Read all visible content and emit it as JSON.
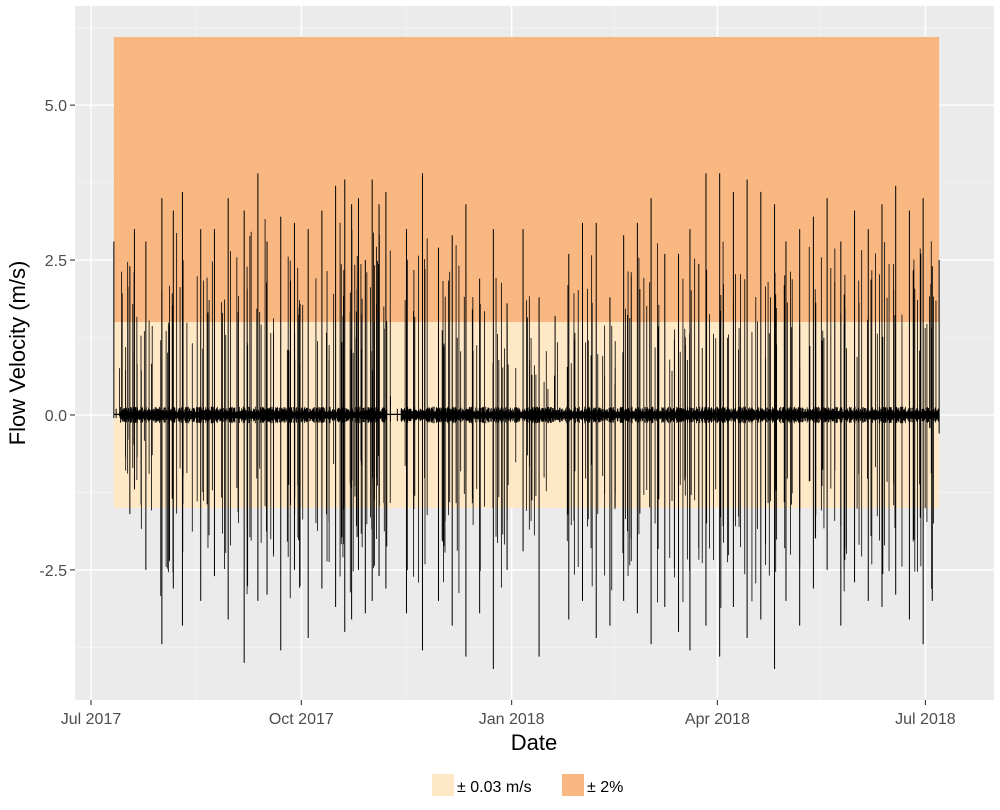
{
  "chart_data": {
    "type": "line",
    "xlabel": "Date",
    "ylabel": "Flow Velocity (m/s)",
    "xlim": [
      "2017-06-24",
      "2018-07-31"
    ],
    "ylim": [
      -4.6,
      6.6
    ],
    "x_ticks": [
      {
        "date": "2017-07-01",
        "label": "Jul 2017"
      },
      {
        "date": "2017-10-01",
        "label": "Oct 2017"
      },
      {
        "date": "2018-01-01",
        "label": "Jan 2018"
      },
      {
        "date": "2018-04-01",
        "label": "Apr 2018"
      },
      {
        "date": "2018-07-01",
        "label": "Jul 2018"
      }
    ],
    "x_minor_ticks": [
      "2017-08-16",
      "2017-11-16",
      "2018-02-15",
      "2018-05-16"
    ],
    "y_ticks": [
      {
        "value": -2.5,
        "label": "-2.5"
      },
      {
        "value": 0.0,
        "label": "0.0"
      },
      {
        "value": 2.5,
        "label": "2.5"
      },
      {
        "value": 5.0,
        "label": "5.0"
      }
    ],
    "y_minor_ticks": [
      -3.75,
      -1.25,
      1.25,
      3.75,
      6.25
    ],
    "grid": true,
    "legend_position": "bottom",
    "bands": [
      {
        "name": "± 0.03 m/s",
        "color": "#FFE8C6",
        "x_range": [
          "2017-07-11",
          "2018-07-07"
        ],
        "y_range": [
          -1.5,
          1.5
        ]
      },
      {
        "name": "± 2%",
        "color": "#F9B882",
        "x_range": [
          "2017-07-11",
          "2018-07-07"
        ],
        "y_range": [
          1.5,
          6.1
        ]
      }
    ],
    "series": [
      {
        "color": "#000000",
        "base_noise": 0.1,
        "x": [
          "2017-07-11",
          "2017-07-12",
          "2017-07-18",
          "2017-07-20",
          "2017-07-25",
          "2017-08-01",
          "2017-08-06",
          "2017-08-10",
          "2017-08-18",
          "2017-08-24",
          "2017-08-30",
          "2017-09-06",
          "2017-09-12",
          "2017-09-16",
          "2017-09-22",
          "2017-09-28",
          "2017-10-04",
          "2017-10-10",
          "2017-10-16",
          "2017-10-20",
          "2017-10-23",
          "2017-10-26",
          "2017-10-29",
          "2017-11-01",
          "2017-11-04",
          "2017-11-07",
          "2017-11-09",
          "2017-11-12",
          "2017-11-16",
          "2017-11-23",
          "2017-11-30",
          "2017-12-06",
          "2017-12-12",
          "2017-12-18",
          "2017-12-24",
          "2017-12-30",
          "2018-01-06",
          "2018-01-13",
          "2018-01-20",
          "2018-01-26",
          "2018-02-01",
          "2018-02-07",
          "2018-02-13",
          "2018-02-19",
          "2018-02-25",
          "2018-03-03",
          "2018-03-09",
          "2018-03-15",
          "2018-03-20",
          "2018-03-27",
          "2018-04-02",
          "2018-04-08",
          "2018-04-14",
          "2018-04-20",
          "2018-04-26",
          "2018-05-01",
          "2018-05-07",
          "2018-05-13",
          "2018-05-19",
          "2018-05-25",
          "2018-05-31",
          "2018-06-06",
          "2018-06-12",
          "2018-06-18",
          "2018-06-24",
          "2018-06-30",
          "2018-07-04",
          "2018-07-07"
        ],
        "max": [
          2.8,
          0.1,
          2.4,
          3.0,
          2.8,
          3.5,
          3.3,
          3.6,
          3.0,
          3.0,
          3.5,
          3.3,
          3.9,
          2.8,
          3.2,
          3.1,
          3.0,
          3.3,
          3.7,
          3.8,
          3.4,
          3.5,
          2.5,
          3.8,
          3.4,
          3.6,
          0.3,
          0.1,
          3.0,
          3.9,
          2.7,
          2.9,
          3.4,
          2.2,
          3.0,
          1.8,
          3.0,
          1.9,
          1.6,
          2.6,
          3.1,
          3.1,
          1.9,
          2.9,
          3.1,
          3.5,
          2.6,
          2.6,
          3.0,
          3.9,
          3.9,
          3.6,
          3.8,
          3.6,
          3.4,
          2.8,
          3.0,
          3.2,
          3.5,
          2.8,
          3.3,
          3.0,
          3.4,
          3.7,
          3.3,
          3.5,
          2.4,
          2.5
        ],
        "min": [
          -0.05,
          -0.05,
          -1.6,
          -1.2,
          -2.5,
          -3.7,
          -2.8,
          -3.4,
          -3.0,
          -2.6,
          -3.3,
          -4.0,
          -3.0,
          -2.9,
          -3.8,
          -2.5,
          -3.6,
          -2.8,
          -3.1,
          -3.5,
          -3.3,
          -2.5,
          -3.2,
          -3.0,
          -2.6,
          -2.8,
          -0.1,
          -0.1,
          -3.2,
          -3.8,
          -3.0,
          -3.4,
          -3.9,
          -3.2,
          -4.1,
          -2.5,
          -2.2,
          -3.9,
          -0.1,
          -3.3,
          -3.0,
          -3.6,
          -3.4,
          -3.0,
          -3.2,
          -3.7,
          -3.1,
          -3.5,
          -3.8,
          -3.4,
          -3.9,
          -3.1,
          -3.6,
          -3.3,
          -4.1,
          -3.0,
          -3.4,
          -2.8,
          -2.5,
          -3.4,
          -2.7,
          -3.0,
          -3.1,
          -2.9,
          -3.3,
          -3.7,
          -3.0,
          -0.3
        ]
      }
    ]
  }
}
